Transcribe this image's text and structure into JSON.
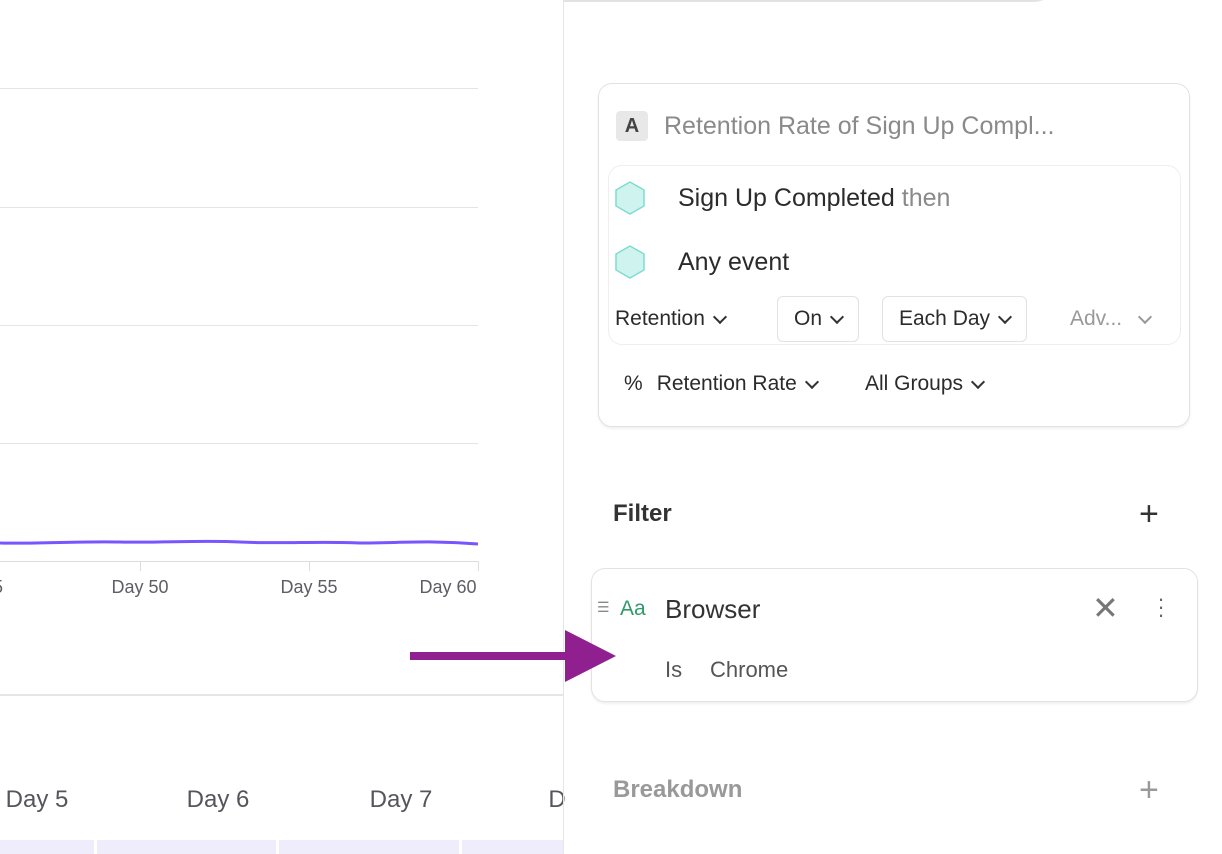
{
  "chart": {
    "x_ticks": [
      "5",
      "Day 50",
      "Day 55",
      "Day 60"
    ],
    "line_color": "#7856ff"
  },
  "day_headers": [
    "Day 5",
    "Day 6",
    "Day 7",
    "D"
  ],
  "metric_card": {
    "letter": "A",
    "title": "Retention Rate of Sign Up Compl...",
    "event1": "Sign Up Completed",
    "then": "then",
    "event2": "Any event",
    "retention": "Retention",
    "on": "On",
    "each_day": "Each Day",
    "advanced": "Adv...",
    "percent": "%",
    "rate": "Retention Rate",
    "groups": "All Groups"
  },
  "filter": {
    "title": "Filter",
    "property": "Browser",
    "type_icon": "Aa",
    "operator": "Is",
    "value": "Chrome"
  },
  "breakdown": {
    "title": "Breakdown"
  },
  "colors": {
    "arrow": "#90208f",
    "hex": "#cff3ef",
    "accent": "#2f9a6a"
  }
}
